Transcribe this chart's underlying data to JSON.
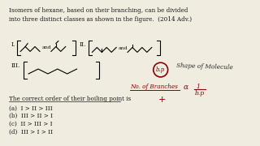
{
  "bg_color": "#f0ece0",
  "title_text": "Isomers of hexane, based on their branching, can be divided\ninto three distinct classes as shown in the figure.  (2014 Adv.)",
  "question_text": "The correct order of their boiling point is",
  "options": [
    "(a)  I > II > III",
    "(b)  III > II > I",
    "(c)  II > III > I",
    "(d)  III > I > II"
  ],
  "text_color": "#1a1a1a",
  "red_color": "#8B0000",
  "dark_color": "#2a2a2a"
}
